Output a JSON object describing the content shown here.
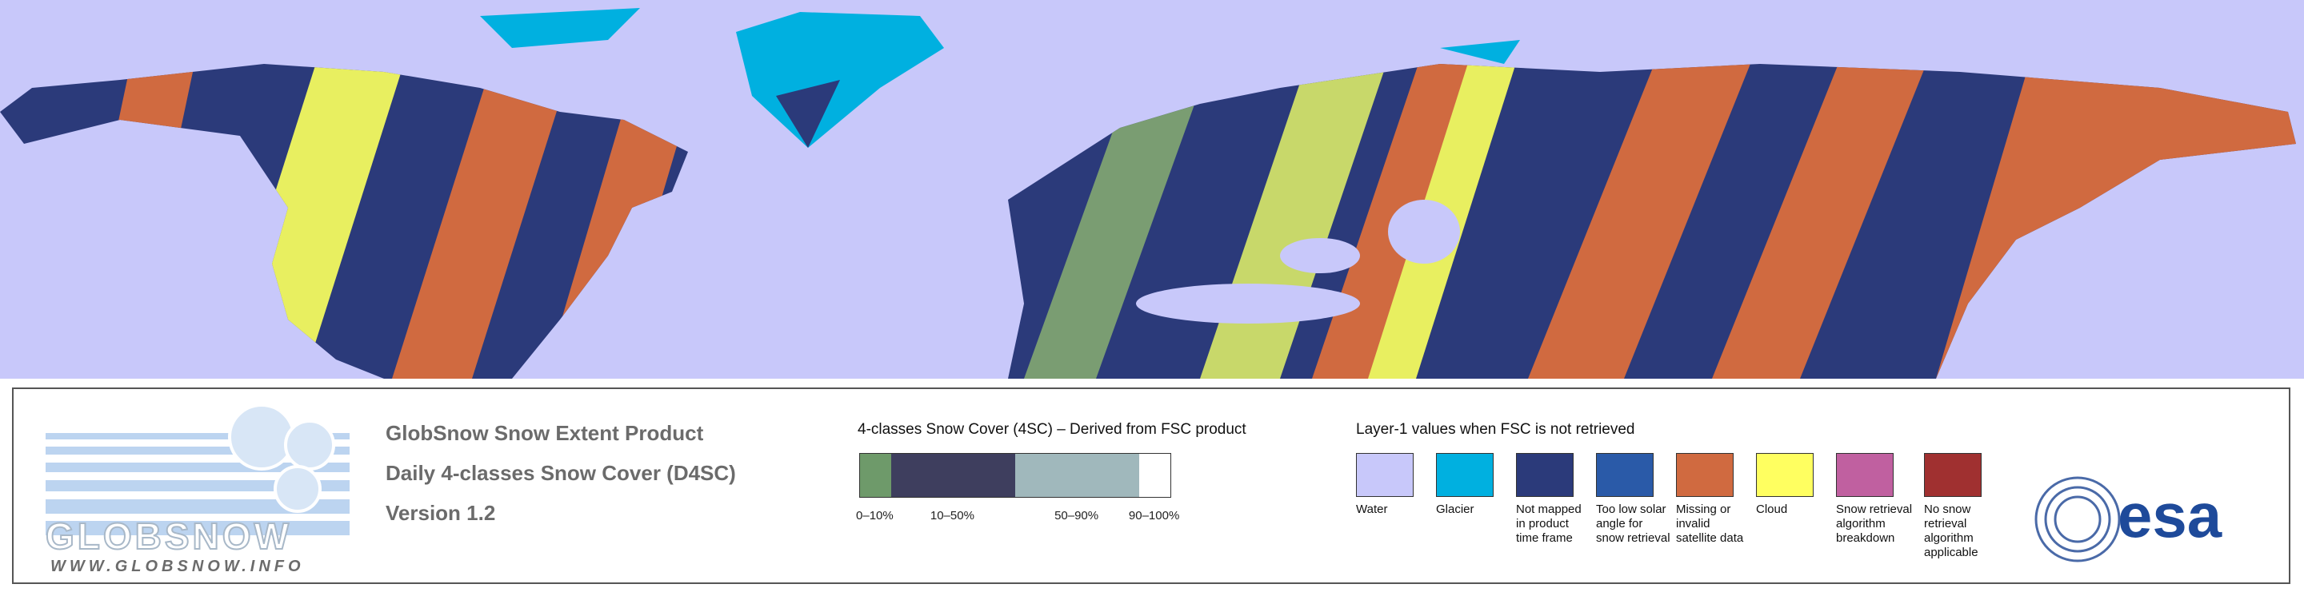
{
  "logo": {
    "name": "GLOBSNOW",
    "url": "WWW.GLOBSNOW.INFO"
  },
  "product": {
    "lines": [
      "GlobSnow Snow Extent Product",
      "Daily 4-classes Snow Cover (D4SC)",
      "Version 1.2"
    ]
  },
  "fsc_legend": {
    "title": "4-classes Snow Cover (4SC) – Derived from FSC product",
    "classes": [
      {
        "label": "0–10%",
        "color": "#6e9a6a"
      },
      {
        "label": "10–50%",
        "color": "#3e3e5e"
      },
      {
        "label": "50–90%",
        "color": "#a0b8bc"
      },
      {
        "label": "90–100%",
        "color": "#ffffff"
      }
    ]
  },
  "layer1_legend": {
    "title": "Layer-1 values when FSC is not retrieved",
    "items": [
      {
        "label": "Water",
        "color": "#c8c8fa"
      },
      {
        "label": "Glacier",
        "color": "#00b0e0"
      },
      {
        "label": "Not mapped in product time frame",
        "color": "#2b3a7a"
      },
      {
        "label": "Too low solar angle for snow retrieval",
        "color": "#2a5aa8"
      },
      {
        "label": "Missing or invalid satellite data",
        "color": "#d06a40"
      },
      {
        "label": "Cloud",
        "color": "#ffff60"
      },
      {
        "label": "Snow retrieval algorithm breakdown",
        "color": "#c060a0"
      },
      {
        "label": "No snow retrieval algorithm applicable",
        "color": "#a03030"
      }
    ]
  },
  "esa": "esa"
}
